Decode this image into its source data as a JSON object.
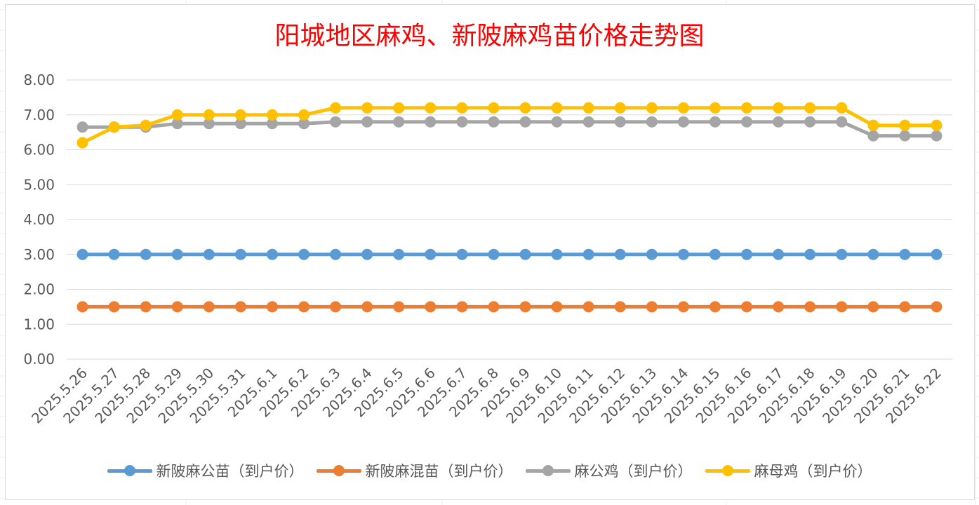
{
  "chart_data": {
    "type": "line",
    "title": "阳城地区麻鸡、新陂麻鸡苗价格走势图",
    "title_color": "#ff0000",
    "xlabel": "",
    "ylabel": "",
    "ylim": [
      0,
      8
    ],
    "y_ticks": [
      "0.00",
      "1.00",
      "2.00",
      "3.00",
      "4.00",
      "5.00",
      "6.00",
      "7.00",
      "8.00"
    ],
    "grid": true,
    "legend_position": "bottom",
    "categories": [
      "2025.5.26",
      "2025.5.27",
      "2025.5.28",
      "2025.5.29",
      "2025.5.30",
      "2025.5.31",
      "2025.6.1",
      "2025.6.2",
      "2025.6.3",
      "2025.6.4",
      "2025.6.5",
      "2025.6.6",
      "2025.6.7",
      "2025.6.8",
      "2025.6.9",
      "2025.6.10",
      "2025.6.11",
      "2025.6.12",
      "2025.6.13",
      "2025.6.14",
      "2025.6.15",
      "2025.6.16",
      "2025.6.17",
      "2025.6.18",
      "2025.6.19",
      "2025.6.20",
      "2025.6.21",
      "2025.6.22"
    ],
    "series": [
      {
        "name": "新陂麻公苗（到户价）",
        "color": "#5b9bd5",
        "values": [
          3,
          3,
          3,
          3,
          3,
          3,
          3,
          3,
          3,
          3,
          3,
          3,
          3,
          3,
          3,
          3,
          3,
          3,
          3,
          3,
          3,
          3,
          3,
          3,
          3,
          3,
          3,
          3
        ]
      },
      {
        "name": "新陂麻混苗（到户价）",
        "color": "#ed7d31",
        "values": [
          1.5,
          1.5,
          1.5,
          1.5,
          1.5,
          1.5,
          1.5,
          1.5,
          1.5,
          1.5,
          1.5,
          1.5,
          1.5,
          1.5,
          1.5,
          1.5,
          1.5,
          1.5,
          1.5,
          1.5,
          1.5,
          1.5,
          1.5,
          1.5,
          1.5,
          1.5,
          1.5,
          1.5
        ]
      },
      {
        "name": "麻公鸡（到户价）",
        "color": "#a5a5a5",
        "values": [
          6.65,
          6.65,
          6.65,
          6.75,
          6.75,
          6.75,
          6.75,
          6.75,
          6.8,
          6.8,
          6.8,
          6.8,
          6.8,
          6.8,
          6.8,
          6.8,
          6.8,
          6.8,
          6.8,
          6.8,
          6.8,
          6.8,
          6.8,
          6.8,
          6.8,
          6.4,
          6.4,
          6.4
        ]
      },
      {
        "name": "麻母鸡（到户价）",
        "color": "#ffc000",
        "values": [
          6.2,
          6.65,
          6.7,
          7,
          7,
          7,
          7,
          7,
          7.2,
          7.2,
          7.2,
          7.2,
          7.2,
          7.2,
          7.2,
          7.2,
          7.2,
          7.2,
          7.2,
          7.2,
          7.2,
          7.2,
          7.2,
          7.2,
          7.2,
          6.7,
          6.7,
          6.7
        ]
      }
    ]
  }
}
